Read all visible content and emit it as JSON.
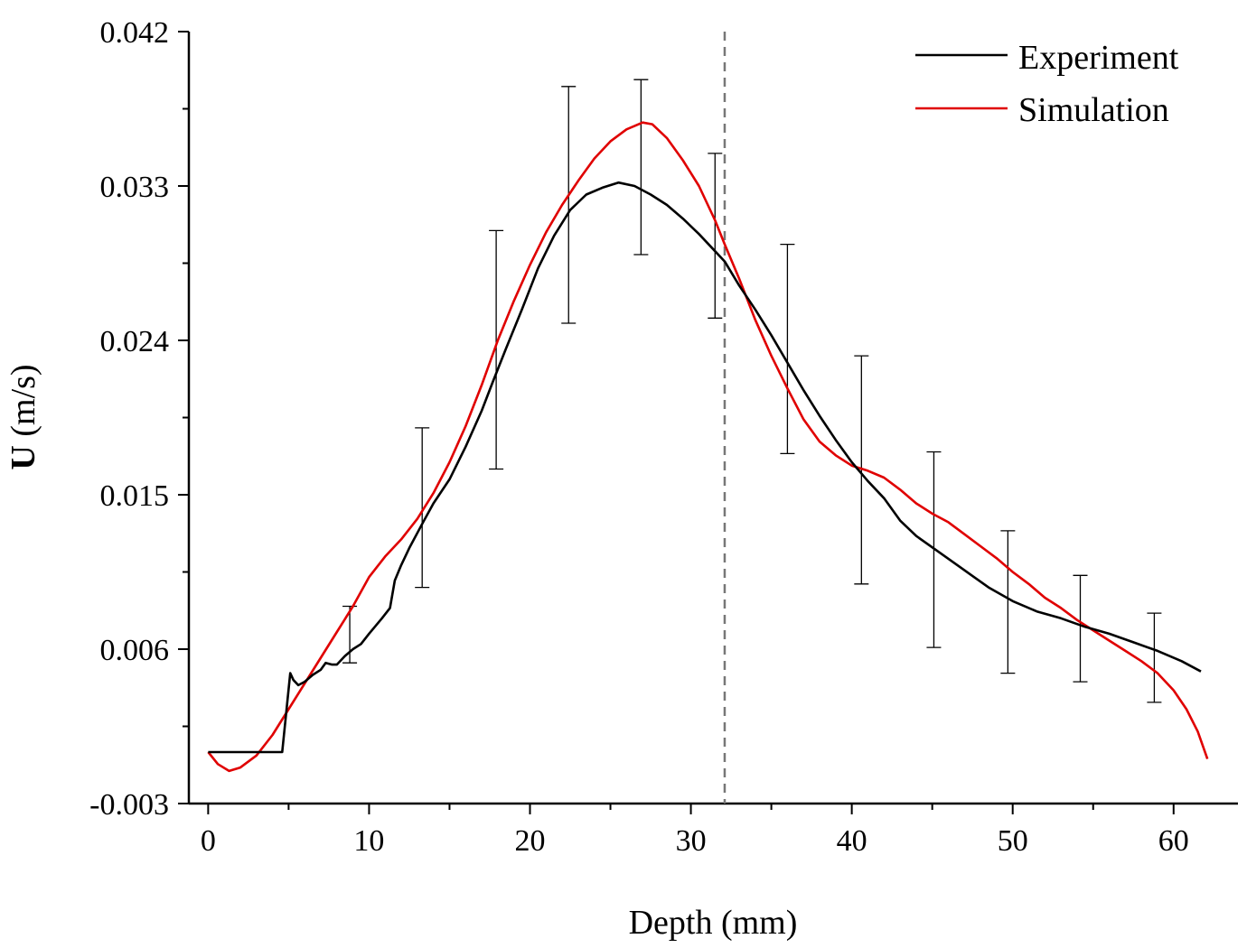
{
  "chart_data": {
    "type": "line",
    "title": "",
    "xlabel": "Depth (mm)",
    "ylabel_bold": "U",
    "ylabel_rest": " (m/s)",
    "xlim": [
      -1.2,
      64
    ],
    "ylim": [
      -0.003,
      0.042
    ],
    "x_ticks": [
      0,
      10,
      20,
      30,
      40,
      50,
      60
    ],
    "x_tick_labels": [
      "0",
      "10",
      "20",
      "30",
      "40",
      "50",
      "60"
    ],
    "y_ticks": [
      -0.003,
      0.006,
      0.015,
      0.024,
      0.033,
      0.042
    ],
    "y_tick_labels": [
      "-0.003",
      "0.006",
      "0.015",
      "0.024",
      "0.033",
      "0.042"
    ],
    "reference_line_x": 32.1,
    "legend_position": "top-right",
    "series": [
      {
        "name": "Experiment",
        "color": "#000000",
        "x": [
          0,
          2,
          4.6,
          5.1,
          5.3,
          5.6,
          6,
          6.5,
          7,
          7.3,
          7.7,
          8,
          8.5,
          9,
          9.5,
          10,
          10.8,
          11.3,
          11.6,
          12,
          12.5,
          13.3,
          14,
          15,
          16,
          17,
          17.7,
          18.5,
          19.5,
          20.5,
          21.5,
          22.5,
          23.5,
          24.5,
          25.5,
          26.5,
          27.5,
          28.5,
          29.5,
          30.5,
          31.5,
          32.1,
          33,
          34,
          35,
          36,
          37,
          38,
          39,
          40,
          41,
          42,
          43,
          44,
          45.5,
          47,
          48.5,
          50,
          51.5,
          53,
          54.5,
          56,
          57.5,
          59,
          60.5,
          61.7
        ],
        "y": [
          0,
          0,
          0,
          4.6,
          4.2,
          3.9,
          4.1,
          4.5,
          4.8,
          5.2,
          5.1,
          5.1,
          5.6,
          6.0,
          6.3,
          6.9,
          7.8,
          8.4,
          10.0,
          10.9,
          11.9,
          13.3,
          14.5,
          15.9,
          17.8,
          19.9,
          21.6,
          23.5,
          25.8,
          28.2,
          30.1,
          31.6,
          32.5,
          32.9,
          33.2,
          33.0,
          32.5,
          31.9,
          31.1,
          30.2,
          29.2,
          28.6,
          27.2,
          25.8,
          24.3,
          22.7,
          21.1,
          19.6,
          18.2,
          16.9,
          15.8,
          14.8,
          13.5,
          12.6,
          11.6,
          10.6,
          9.6,
          8.8,
          8.2,
          7.8,
          7.3,
          6.9,
          6.4,
          5.9,
          5.3,
          4.7
        ]
      },
      {
        "name": "Simulation",
        "color": "#e00000",
        "x": [
          0,
          0.6,
          1.3,
          2,
          3,
          4,
          5,
          6,
          7,
          8,
          9,
          10,
          11,
          12,
          13,
          14,
          15,
          16,
          17,
          18,
          19,
          20,
          21,
          22,
          23,
          24,
          25,
          26,
          27,
          27.6,
          28.5,
          29.5,
          30.5,
          31.5,
          32.1,
          33,
          34,
          35,
          36,
          37,
          38,
          39,
          40,
          41,
          42,
          43,
          44,
          45,
          46,
          47,
          48,
          49,
          50,
          51,
          52,
          53,
          54,
          55,
          56,
          57,
          58,
          59,
          60,
          60.8,
          61.5,
          62.1
        ],
        "y": [
          0,
          -0.7,
          -1.1,
          -0.9,
          -0.2,
          1.0,
          2.5,
          4.0,
          5.5,
          7.0,
          8.5,
          10.2,
          11.4,
          12.4,
          13.6,
          15.1,
          16.9,
          19.0,
          21.4,
          24.0,
          26.3,
          28.4,
          30.3,
          31.9,
          33.3,
          34.6,
          35.6,
          36.3,
          36.7,
          36.6,
          35.8,
          34.5,
          33.0,
          31.0,
          29.6,
          27.6,
          25.2,
          23.1,
          21.2,
          19.4,
          18.1,
          17.3,
          16.7,
          16.4,
          16.0,
          15.3,
          14.5,
          13.9,
          13.4,
          12.7,
          12.0,
          11.3,
          10.5,
          9.8,
          9.0,
          8.4,
          7.7,
          7.1,
          6.5,
          5.9,
          5.3,
          4.6,
          3.6,
          2.5,
          1.2,
          -0.4
        ]
      }
    ],
    "y_scale_note_units": "series y values in units of 0.001 m/s",
    "error_bars": [
      {
        "x": 8.8,
        "y": 6.7,
        "low": 5.2,
        "high": 8.5
      },
      {
        "x": 13.3,
        "y": 14.0,
        "low": 9.6,
        "high": 18.9
      },
      {
        "x": 17.9,
        "y": 22.4,
        "low": 16.5,
        "high": 30.4
      },
      {
        "x": 22.4,
        "y": 31.0,
        "low": 25.0,
        "high": 38.8
      },
      {
        "x": 26.9,
        "y": 33.2,
        "low": 29.0,
        "high": 39.2
      },
      {
        "x": 31.5,
        "y": 29.7,
        "low": 25.3,
        "high": 34.9
      },
      {
        "x": 36.0,
        "y": 22.6,
        "low": 17.4,
        "high": 29.6
      },
      {
        "x": 40.6,
        "y": 16.4,
        "low": 9.8,
        "high": 23.1
      },
      {
        "x": 45.1,
        "y": 11.9,
        "low": 6.1,
        "high": 17.5
      },
      {
        "x": 49.7,
        "y": 8.7,
        "low": 4.6,
        "high": 12.9
      },
      {
        "x": 54.2,
        "y": 7.3,
        "low": 4.1,
        "high": 10.3
      },
      {
        "x": 58.8,
        "y": 5.9,
        "low": 2.9,
        "high": 8.1
      }
    ]
  }
}
